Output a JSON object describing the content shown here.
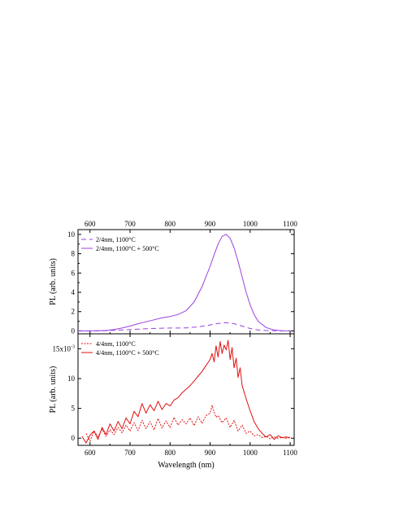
{
  "chart_data": [
    {
      "type": "line",
      "xlabel": "",
      "ylabel": "PL (arb. units)",
      "xlim": [
        570,
        1110
      ],
      "ylim": [
        -0.3,
        10.5
      ],
      "x_ticks": [
        600,
        700,
        800,
        900,
        1000,
        1100
      ],
      "y_ticks": [
        0,
        2,
        4,
        6,
        8,
        10
      ],
      "top_axis_labels": true,
      "series_color": "#9a40e0",
      "legend_placement": "top-left",
      "series": [
        {
          "name": "2/4nm, 1100°C",
          "style": "dashed",
          "x": [
            570,
            600,
            640,
            660,
            680,
            700,
            720,
            740,
            760,
            780,
            800,
            820,
            840,
            860,
            880,
            900,
            920,
            940,
            960,
            980,
            1000,
            1020,
            1040,
            1060,
            1080,
            1100
          ],
          "y": [
            0.0,
            0.0,
            0.02,
            0.06,
            0.1,
            0.14,
            0.18,
            0.22,
            0.26,
            0.28,
            0.3,
            0.3,
            0.32,
            0.38,
            0.48,
            0.62,
            0.78,
            0.85,
            0.75,
            0.5,
            0.25,
            0.1,
            0.04,
            0.02,
            0.0,
            0.0
          ]
        },
        {
          "name": "2/4nm, 1100°C + 500°C",
          "style": "solid",
          "x": [
            570,
            600,
            620,
            640,
            660,
            680,
            700,
            720,
            740,
            760,
            780,
            800,
            820,
            840,
            860,
            880,
            900,
            910,
            920,
            930,
            940,
            950,
            960,
            970,
            980,
            990,
            1000,
            1010,
            1020,
            1040,
            1060,
            1080,
            1100
          ],
          "y": [
            0.0,
            0.0,
            0.02,
            0.05,
            0.15,
            0.3,
            0.5,
            0.75,
            0.95,
            1.15,
            1.35,
            1.5,
            1.7,
            2.1,
            3.0,
            4.6,
            6.7,
            7.9,
            9.0,
            9.8,
            10.0,
            9.6,
            8.6,
            7.2,
            5.6,
            4.0,
            2.7,
            1.7,
            1.0,
            0.35,
            0.1,
            0.02,
            0.0
          ]
        }
      ]
    },
    {
      "type": "line",
      "xlabel": "Wavelength (nm)",
      "ylabel": "PL (arb. units)",
      "xlim": [
        570,
        1110
      ],
      "ylim": [
        -0.0012,
        0.0175
      ],
      "x_ticks": [
        600,
        700,
        800,
        900,
        1000,
        1100
      ],
      "y_ticks": [
        0,
        5,
        10,
        15
      ],
      "y_tick_multiplier": "x10",
      "y_tick_exponent": "-3",
      "series_color": "#e01010",
      "legend_placement": "top-left",
      "series": [
        {
          "name": "4/4nm, 1100°C",
          "style": "dotted",
          "x": [
            590,
            600,
            610,
            620,
            630,
            640,
            650,
            660,
            670,
            680,
            690,
            700,
            710,
            720,
            730,
            740,
            750,
            760,
            770,
            780,
            790,
            800,
            810,
            820,
            830,
            840,
            850,
            860,
            870,
            880,
            890,
            900,
            905,
            910,
            915,
            920,
            930,
            940,
            950,
            960,
            970,
            980,
            990,
            1000,
            1010,
            1020,
            1030,
            1040,
            1050,
            1060,
            1070,
            1080,
            1090,
            1100
          ],
          "y": [
            0.0008,
            -0.0005,
            0.0012,
            0.0002,
            0.0015,
            0.0003,
            0.0014,
            0.0006,
            0.0018,
            0.0009,
            0.0022,
            0.0012,
            0.0026,
            0.0013,
            0.003,
            0.0016,
            0.0028,
            0.0014,
            0.0033,
            0.0017,
            0.0029,
            0.0018,
            0.0035,
            0.0022,
            0.0031,
            0.0024,
            0.0034,
            0.0021,
            0.0036,
            0.0025,
            0.0038,
            0.0042,
            0.0055,
            0.0044,
            0.0035,
            0.0038,
            0.0026,
            0.0034,
            0.0018,
            0.003,
            0.0012,
            0.0022,
            0.0008,
            0.0012,
            0.0004,
            0.0006,
            0.0001,
            0.0003,
            -0.0001,
            0.0002,
            0.0,
            0.0001,
            0.0,
            0.0001
          ]
        },
        {
          "name": "4/4nm, 1100°C + 500°C",
          "style": "solid",
          "x": [
            580,
            590,
            600,
            610,
            620,
            630,
            640,
            650,
            660,
            670,
            680,
            690,
            700,
            710,
            720,
            730,
            740,
            750,
            760,
            770,
            780,
            790,
            800,
            810,
            820,
            830,
            840,
            850,
            860,
            870,
            880,
            890,
            900,
            905,
            910,
            915,
            920,
            925,
            930,
            935,
            940,
            945,
            950,
            955,
            960,
            965,
            970,
            975,
            980,
            990,
            1000,
            1010,
            1020,
            1030,
            1040,
            1050,
            1060,
            1070,
            1080,
            1090,
            1100
          ],
          "y": [
            0.0003,
            -0.0008,
            0.0005,
            0.0012,
            -0.0002,
            0.0018,
            0.0006,
            0.0024,
            0.0012,
            0.0028,
            0.0016,
            0.0034,
            0.0024,
            0.0045,
            0.0036,
            0.0058,
            0.0042,
            0.0056,
            0.0046,
            0.0062,
            0.0048,
            0.0058,
            0.0054,
            0.0064,
            0.0068,
            0.0076,
            0.0082,
            0.0088,
            0.0096,
            0.0104,
            0.0112,
            0.0122,
            0.0132,
            0.0142,
            0.0128,
            0.0155,
            0.0136,
            0.0162,
            0.0142,
            0.0156,
            0.0148,
            0.0164,
            0.0132,
            0.0152,
            0.0118,
            0.0134,
            0.0102,
            0.0118,
            0.0088,
            0.0066,
            0.0046,
            0.0028,
            0.0016,
            0.0008,
            0.0002,
            0.0006,
            -0.0002,
            0.0004,
            0.0001,
            0.0002,
            0.0001
          ]
        }
      ]
    }
  ]
}
